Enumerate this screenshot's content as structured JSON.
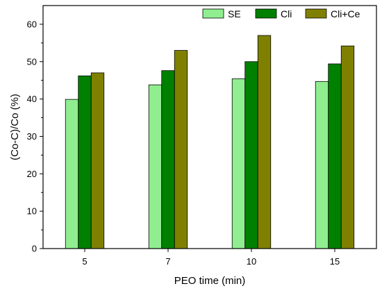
{
  "chart_data": {
    "type": "bar",
    "title": "",
    "xlabel": "PEO time (min)",
    "ylabel": "(Co-C)/Co (%)",
    "categories": [
      "5",
      "7",
      "10",
      "15"
    ],
    "ylim": [
      0,
      65
    ],
    "yticks": [
      0,
      10,
      20,
      30,
      40,
      50,
      60
    ],
    "grid": false,
    "legend_position": "top-right",
    "series": [
      {
        "name": "SE",
        "color": "#90ee90",
        "values": [
          39.9,
          43.8,
          45.4,
          44.7
        ]
      },
      {
        "name": "Cli",
        "color": "#008000",
        "values": [
          46.2,
          47.6,
          50.0,
          49.4
        ]
      },
      {
        "name": "Cli+Ce",
        "color": "#808000",
        "values": [
          47.0,
          53.0,
          57.0,
          54.2
        ]
      }
    ]
  }
}
